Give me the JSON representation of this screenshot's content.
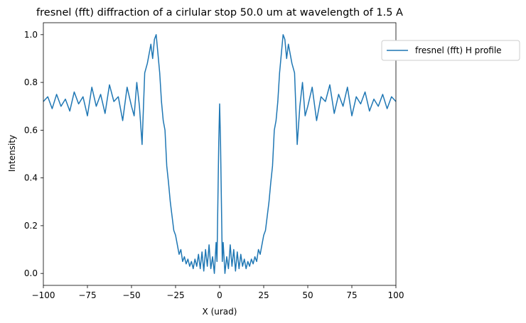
{
  "chart_data": {
    "type": "line",
    "title": "fresnel (fft) diffraction of a cirlular stop 50.0 um at wavelength of 1.5 A",
    "xlabel": "X (urad)",
    "ylabel": "Intensity",
    "xlim": [
      -100,
      100
    ],
    "ylim": [
      -0.05,
      1.05
    ],
    "xticks": [
      -100,
      -75,
      -50,
      -25,
      0,
      25,
      50,
      75,
      100
    ],
    "xtick_labels": [
      "−100",
      "−75",
      "−50",
      "−25",
      "0",
      "25",
      "50",
      "75",
      "100"
    ],
    "yticks": [
      0.0,
      0.2,
      0.4,
      0.6,
      0.8,
      1.0
    ],
    "ytick_labels": [
      "0.0",
      "0.2",
      "0.4",
      "0.6",
      "0.8",
      "1.0"
    ],
    "grid": false,
    "legend_position": "upper-right-outside",
    "series": [
      {
        "name": "fresnel (fft) H profile",
        "color": "#1f77b4",
        "x": [
          -100,
          -97.5,
          -95,
          -92.5,
          -90,
          -87.5,
          -85,
          -82.5,
          -80,
          -77.5,
          -75,
          -72.5,
          -70,
          -67.5,
          -65,
          -62.5,
          -60,
          -57.5,
          -55,
          -52.5,
          -50,
          -48.5,
          -47,
          -45.5,
          -44,
          -42.5,
          -41,
          -40,
          -39,
          -38,
          -37,
          -36,
          -35,
          -34,
          -33,
          -32,
          -31,
          -30,
          -29,
          -28,
          -27,
          -26,
          -25,
          -24,
          -23,
          -22,
          -21,
          -20,
          -19,
          -18,
          -17,
          -16,
          -15,
          -14,
          -13,
          -12,
          -11,
          -10,
          -9,
          -8,
          -7,
          -6,
          -5,
          -4,
          -3,
          -2,
          -1.5,
          -1,
          -0.5,
          0,
          0.5,
          1,
          1.5,
          2,
          3,
          4,
          5,
          6,
          7,
          8,
          9,
          10,
          11,
          12,
          13,
          14,
          15,
          16,
          17,
          18,
          19,
          20,
          21,
          22,
          23,
          24,
          25,
          26,
          27,
          28,
          29,
          30,
          31,
          32,
          33,
          34,
          35,
          36,
          37,
          38,
          39,
          40,
          41,
          42.5,
          44,
          45.5,
          47,
          48.5,
          50,
          52.5,
          55,
          57.5,
          60,
          62.5,
          65,
          67.5,
          70,
          72.5,
          75,
          77.5,
          80,
          82.5,
          85,
          87.5,
          90,
          92.5,
          95,
          97.5,
          100
        ],
        "y": [
          0.72,
          0.74,
          0.69,
          0.75,
          0.7,
          0.73,
          0.68,
          0.76,
          0.71,
          0.74,
          0.66,
          0.78,
          0.7,
          0.75,
          0.67,
          0.79,
          0.72,
          0.74,
          0.64,
          0.78,
          0.7,
          0.66,
          0.8,
          0.7,
          0.54,
          0.84,
          0.88,
          0.92,
          0.96,
          0.9,
          0.98,
          1.0,
          0.92,
          0.84,
          0.72,
          0.64,
          0.6,
          0.45,
          0.38,
          0.3,
          0.24,
          0.18,
          0.16,
          0.12,
          0.08,
          0.1,
          0.05,
          0.07,
          0.04,
          0.06,
          0.03,
          0.05,
          0.02,
          0.06,
          0.03,
          0.08,
          0.02,
          0.09,
          0.01,
          0.1,
          0.03,
          0.12,
          0.02,
          0.07,
          0.0,
          0.13,
          0.05,
          0.3,
          0.55,
          0.71,
          0.55,
          0.3,
          0.05,
          0.13,
          0.0,
          0.07,
          0.02,
          0.12,
          0.03,
          0.1,
          0.01,
          0.09,
          0.02,
          0.08,
          0.03,
          0.06,
          0.02,
          0.05,
          0.03,
          0.06,
          0.04,
          0.07,
          0.05,
          0.1,
          0.08,
          0.12,
          0.16,
          0.18,
          0.24,
          0.3,
          0.38,
          0.45,
          0.6,
          0.64,
          0.72,
          0.84,
          0.92,
          1.0,
          0.98,
          0.9,
          0.96,
          0.92,
          0.88,
          0.84,
          0.54,
          0.7,
          0.8,
          0.66,
          0.7,
          0.78,
          0.64,
          0.74,
          0.72,
          0.79,
          0.67,
          0.75,
          0.7,
          0.78,
          0.66,
          0.74,
          0.71,
          0.76,
          0.68,
          0.73,
          0.7,
          0.75,
          0.69,
          0.74,
          0.72
        ]
      }
    ]
  }
}
